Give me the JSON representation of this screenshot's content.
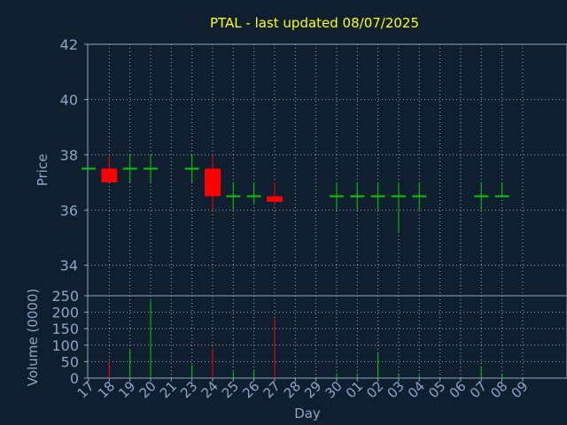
{
  "chart_data": {
    "type": "candlestick",
    "title": "PTAL - last updated 08/07/2025",
    "price_panel": {
      "ylabel": "Price",
      "ylim": [
        32.9,
        42
      ],
      "yticks": [
        "42",
        "40",
        "38",
        "36",
        "34"
      ],
      "ytick_values": [
        42,
        40,
        38,
        36,
        34
      ],
      "grid": true
    },
    "volume_panel": {
      "ylabel": "Volume (0000)",
      "ylim": [
        0,
        250
      ],
      "yticks": [
        "250",
        "200",
        "150",
        "100",
        "50",
        "0"
      ],
      "ytick_values": [
        250,
        200,
        150,
        100,
        50,
        0
      ],
      "grid": true
    },
    "xlabel": "Day",
    "x_ticks": [
      "17",
      "18",
      "19",
      "20",
      "21",
      "23",
      "24",
      "25",
      "26",
      "27",
      "28",
      "29",
      "30",
      "01",
      "02",
      "03",
      "04",
      "05",
      "06",
      "07",
      "08",
      "09"
    ],
    "candles": [
      {
        "day": "17",
        "open": 37.5,
        "high": 37.5,
        "low": 37.5,
        "close": 37.5,
        "volume": 0,
        "color": "#00cc00"
      },
      {
        "day": "18",
        "open": 37.5,
        "high": 38.0,
        "low": 37.0,
        "close": 37.0,
        "volume": 50,
        "color": "#ff0000"
      },
      {
        "day": "19",
        "open": 37.5,
        "high": 38.0,
        "low": 37.0,
        "close": 37.5,
        "volume": 85,
        "color": "#00cc00"
      },
      {
        "day": "20",
        "open": 37.5,
        "high": 38.0,
        "low": 37.0,
        "close": 37.5,
        "volume": 235,
        "color": "#00cc00"
      },
      {
        "day": "23",
        "open": 37.5,
        "high": 38.0,
        "low": 37.0,
        "close": 37.5,
        "volume": 40,
        "color": "#00cc00"
      },
      {
        "day": "24",
        "open": 37.5,
        "high": 38.0,
        "low": 36.0,
        "close": 36.5,
        "volume": 90,
        "color": "#ff0000"
      },
      {
        "day": "25",
        "open": 36.5,
        "high": 37.0,
        "low": 36.0,
        "close": 36.5,
        "volume": 20,
        "color": "#00cc00"
      },
      {
        "day": "26",
        "open": 36.5,
        "high": 37.0,
        "low": 36.2,
        "close": 36.5,
        "volume": 25,
        "color": "#00cc00"
      },
      {
        "day": "27",
        "open": 36.5,
        "high": 37.0,
        "low": 36.2,
        "close": 36.3,
        "volume": 180,
        "color": "#ff0000"
      },
      {
        "day": "30",
        "open": 36.5,
        "high": 37.0,
        "low": 36.0,
        "close": 36.5,
        "volume": 15,
        "color": "#00cc00"
      },
      {
        "day": "01",
        "open": 36.5,
        "high": 37.0,
        "low": 36.0,
        "close": 36.5,
        "volume": 10,
        "color": "#00cc00"
      },
      {
        "day": "02",
        "open": 36.5,
        "high": 37.0,
        "low": 36.0,
        "close": 36.5,
        "volume": 75,
        "color": "#00cc00"
      },
      {
        "day": "03",
        "open": 36.5,
        "high": 37.0,
        "low": 35.2,
        "close": 36.5,
        "volume": 10,
        "color": "#00cc00"
      },
      {
        "day": "04",
        "open": 36.5,
        "high": 37.0,
        "low": 36.0,
        "close": 36.5,
        "volume": 8,
        "color": "#00cc00"
      },
      {
        "day": "07",
        "open": 36.5,
        "high": 37.0,
        "low": 36.0,
        "close": 36.5,
        "volume": 35,
        "color": "#00cc00"
      },
      {
        "day": "08",
        "open": 36.5,
        "high": 37.0,
        "low": 36.5,
        "close": 36.5,
        "volume": 12,
        "color": "#00cc00"
      }
    ],
    "colors": {
      "background": "#0f1f2f",
      "axis": "#8da6c6",
      "grid": "#c8d0d8",
      "title": "#ffff00",
      "label": "#8da6c6",
      "up": "#00cc00",
      "down": "#ff0000"
    }
  }
}
